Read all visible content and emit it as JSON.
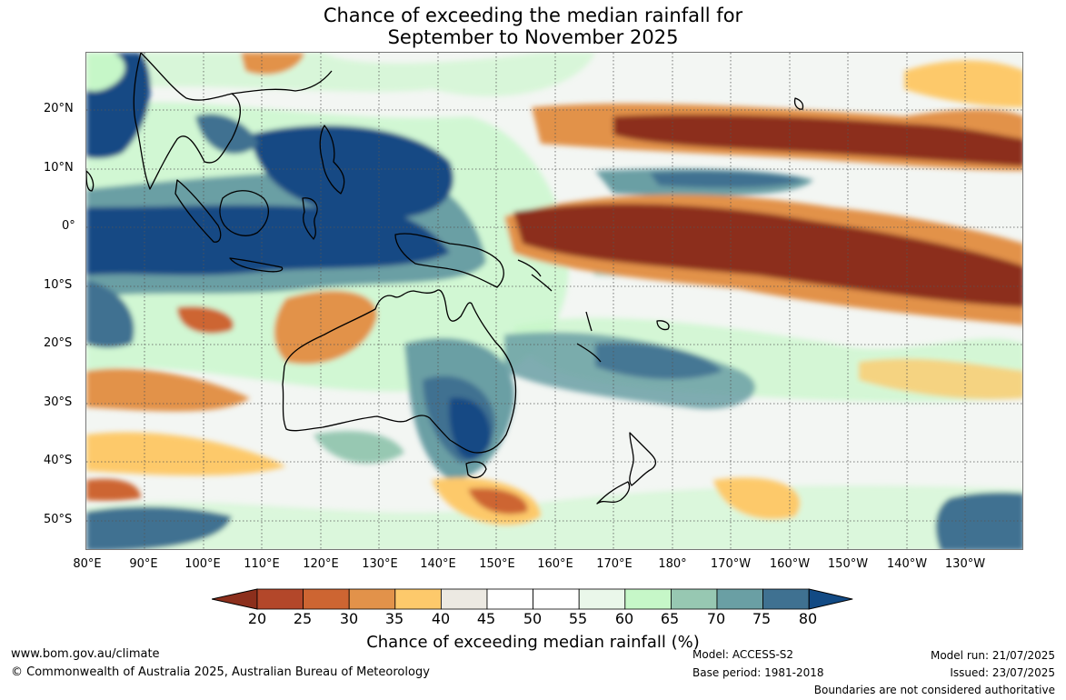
{
  "title": {
    "line1": "Chance of exceeding the median rainfall for",
    "line2": "September to November 2025"
  },
  "map": {
    "region": "Australia and Pacific",
    "lat_ticks": [
      "20°N",
      "10°N",
      "0°",
      "10°S",
      "20°S",
      "30°S",
      "40°S",
      "50°S"
    ],
    "lon_ticks": [
      "80°E",
      "90°E",
      "100°E",
      "110°E",
      "120°E",
      "130°E",
      "140°E",
      "150°E",
      "160°E",
      "170°E",
      "180°",
      "170°W",
      "160°W",
      "150°W",
      "140°W",
      "130°W"
    ],
    "grid": true
  },
  "colorbar": {
    "ticks": [
      "20",
      "25",
      "30",
      "35",
      "40",
      "45",
      "50",
      "55",
      "60",
      "65",
      "70",
      "75",
      "80"
    ],
    "colors": [
      "#8c2f1c",
      "#b3472a",
      "#cd6532",
      "#e2924a",
      "#fdc96b",
      "#ece9e2",
      "#ffffff",
      "#ffffff",
      "#eaf7ea",
      "#c6f7c8",
      "#97c8b2",
      "#6a9fa4",
      "#3f7191",
      "#124a84"
    ],
    "label": "Chance of exceeding median rainfall (%)"
  },
  "footer": {
    "url": "www.bom.gov.au/climate",
    "copyright": "© Commonwealth of Australia 2025, Australian Bureau of Meteorology",
    "model": "Model: ACCESS-S2",
    "base_period": "Base period: 1981-2018",
    "model_run": "Model run: 21/07/2025",
    "issued": "Issued: 23/07/2025",
    "boundaries": "Boundaries are not considered authoritative"
  }
}
